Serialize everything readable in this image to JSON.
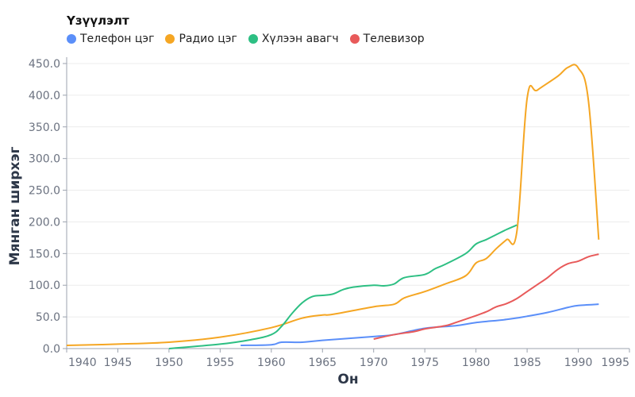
{
  "chart_data": {
    "type": "line",
    "title": "",
    "xlabel": "Он",
    "ylabel": "Мянган ширхэг",
    "xlim": [
      1940,
      1995
    ],
    "ylim": [
      0,
      450
    ],
    "x_ticks": [
      "1940",
      "1945",
      "1950",
      "1955",
      "1960",
      "1965",
      "1970",
      "1975",
      "1980",
      "1985",
      "1990",
      "1995"
    ],
    "y_ticks": [
      "0.0",
      "50.0",
      "100.0",
      "150.0",
      "200.0",
      "250.0",
      "300.0",
      "350.0",
      "400.0",
      "450.0"
    ],
    "grid": true,
    "legend": {
      "title": "Үзүүлэлт",
      "placement": "top-left"
    },
    "series": [
      {
        "name": "Телефон цэг",
        "color": "#5b8ff9",
        "x": [
          1957,
          1960,
          1961,
          1963,
          1965,
          1970,
          1972,
          1975,
          1978,
          1980,
          1983,
          1985,
          1987,
          1989,
          1990,
          1992
        ],
        "y": [
          5,
          6,
          10,
          10,
          13,
          19,
          22,
          32,
          36,
          41,
          46,
          51,
          57,
          65,
          68,
          70
        ]
      },
      {
        "name": "Радио цэг",
        "color": "#f5a623",
        "x": [
          1940,
          1945,
          1950,
          1955,
          1960,
          1963,
          1965,
          1966,
          1970,
          1972,
          1973,
          1975,
          1977,
          1979,
          1980,
          1981,
          1982,
          1983,
          1984,
          1985,
          1986,
          1988,
          1989,
          1990,
          1991,
          1992
        ],
        "y": [
          5,
          7,
          10,
          18,
          33,
          48,
          53,
          54,
          66,
          70,
          80,
          90,
          102,
          115,
          135,
          142,
          158,
          172,
          185,
          395,
          408,
          430,
          444,
          443,
          390,
          172
        ]
      },
      {
        "name": "Хүлээн авагч",
        "color": "#2dbf83",
        "x": [
          1950,
          1955,
          1958,
          1960,
          1961,
          1962,
          1963,
          1964,
          1965,
          1966,
          1967,
          1968,
          1970,
          1971,
          1972,
          1973,
          1975,
          1976,
          1977,
          1979,
          1980,
          1981,
          1982,
          1983,
          1984
        ],
        "y": [
          0,
          7,
          14,
          22,
          35,
          55,
          72,
          82,
          84,
          86,
          93,
          97,
          100,
          99,
          102,
          112,
          117,
          126,
          133,
          150,
          165,
          172,
          180,
          188,
          195
        ]
      },
      {
        "name": "Телевизор",
        "color": "#e85a5a",
        "x": [
          1970,
          1972,
          1974,
          1975,
          1977,
          1978,
          1980,
          1981,
          1982,
          1983,
          1984,
          1985,
          1986,
          1987,
          1988,
          1989,
          1990,
          1991,
          1992
        ],
        "y": [
          15,
          22,
          27,
          31,
          36,
          41,
          52,
          58,
          66,
          71,
          79,
          90,
          101,
          112,
          125,
          134,
          138,
          145,
          149
        ]
      }
    ]
  }
}
